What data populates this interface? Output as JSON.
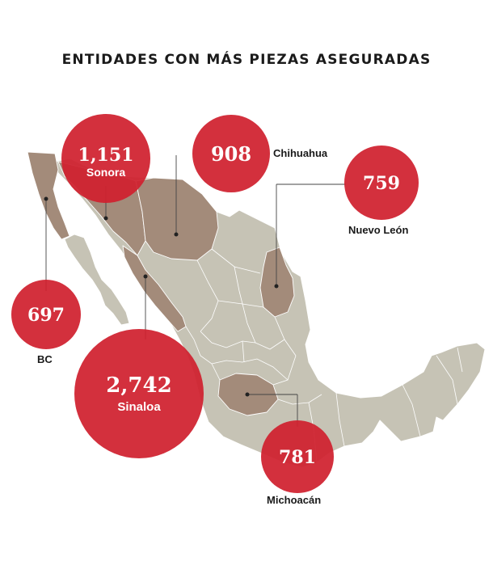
{
  "title": "ENTIDADES CON MÁS PIEZAS ASEGURADAS",
  "colors": {
    "land": "#c6c3b5",
    "highlight": "#a38b7a",
    "bubble": "#d0202e",
    "text": "#1a1a1a"
  },
  "entities": [
    {
      "name": "Sonora",
      "value": "1,151"
    },
    {
      "name": "Chihuahua",
      "value": "908"
    },
    {
      "name": "Nuevo León",
      "value": "759"
    },
    {
      "name": "BC",
      "value": "697"
    },
    {
      "name": "Sinaloa",
      "value": "2,742"
    },
    {
      "name": "Michoacán",
      "value": "781"
    }
  ]
}
